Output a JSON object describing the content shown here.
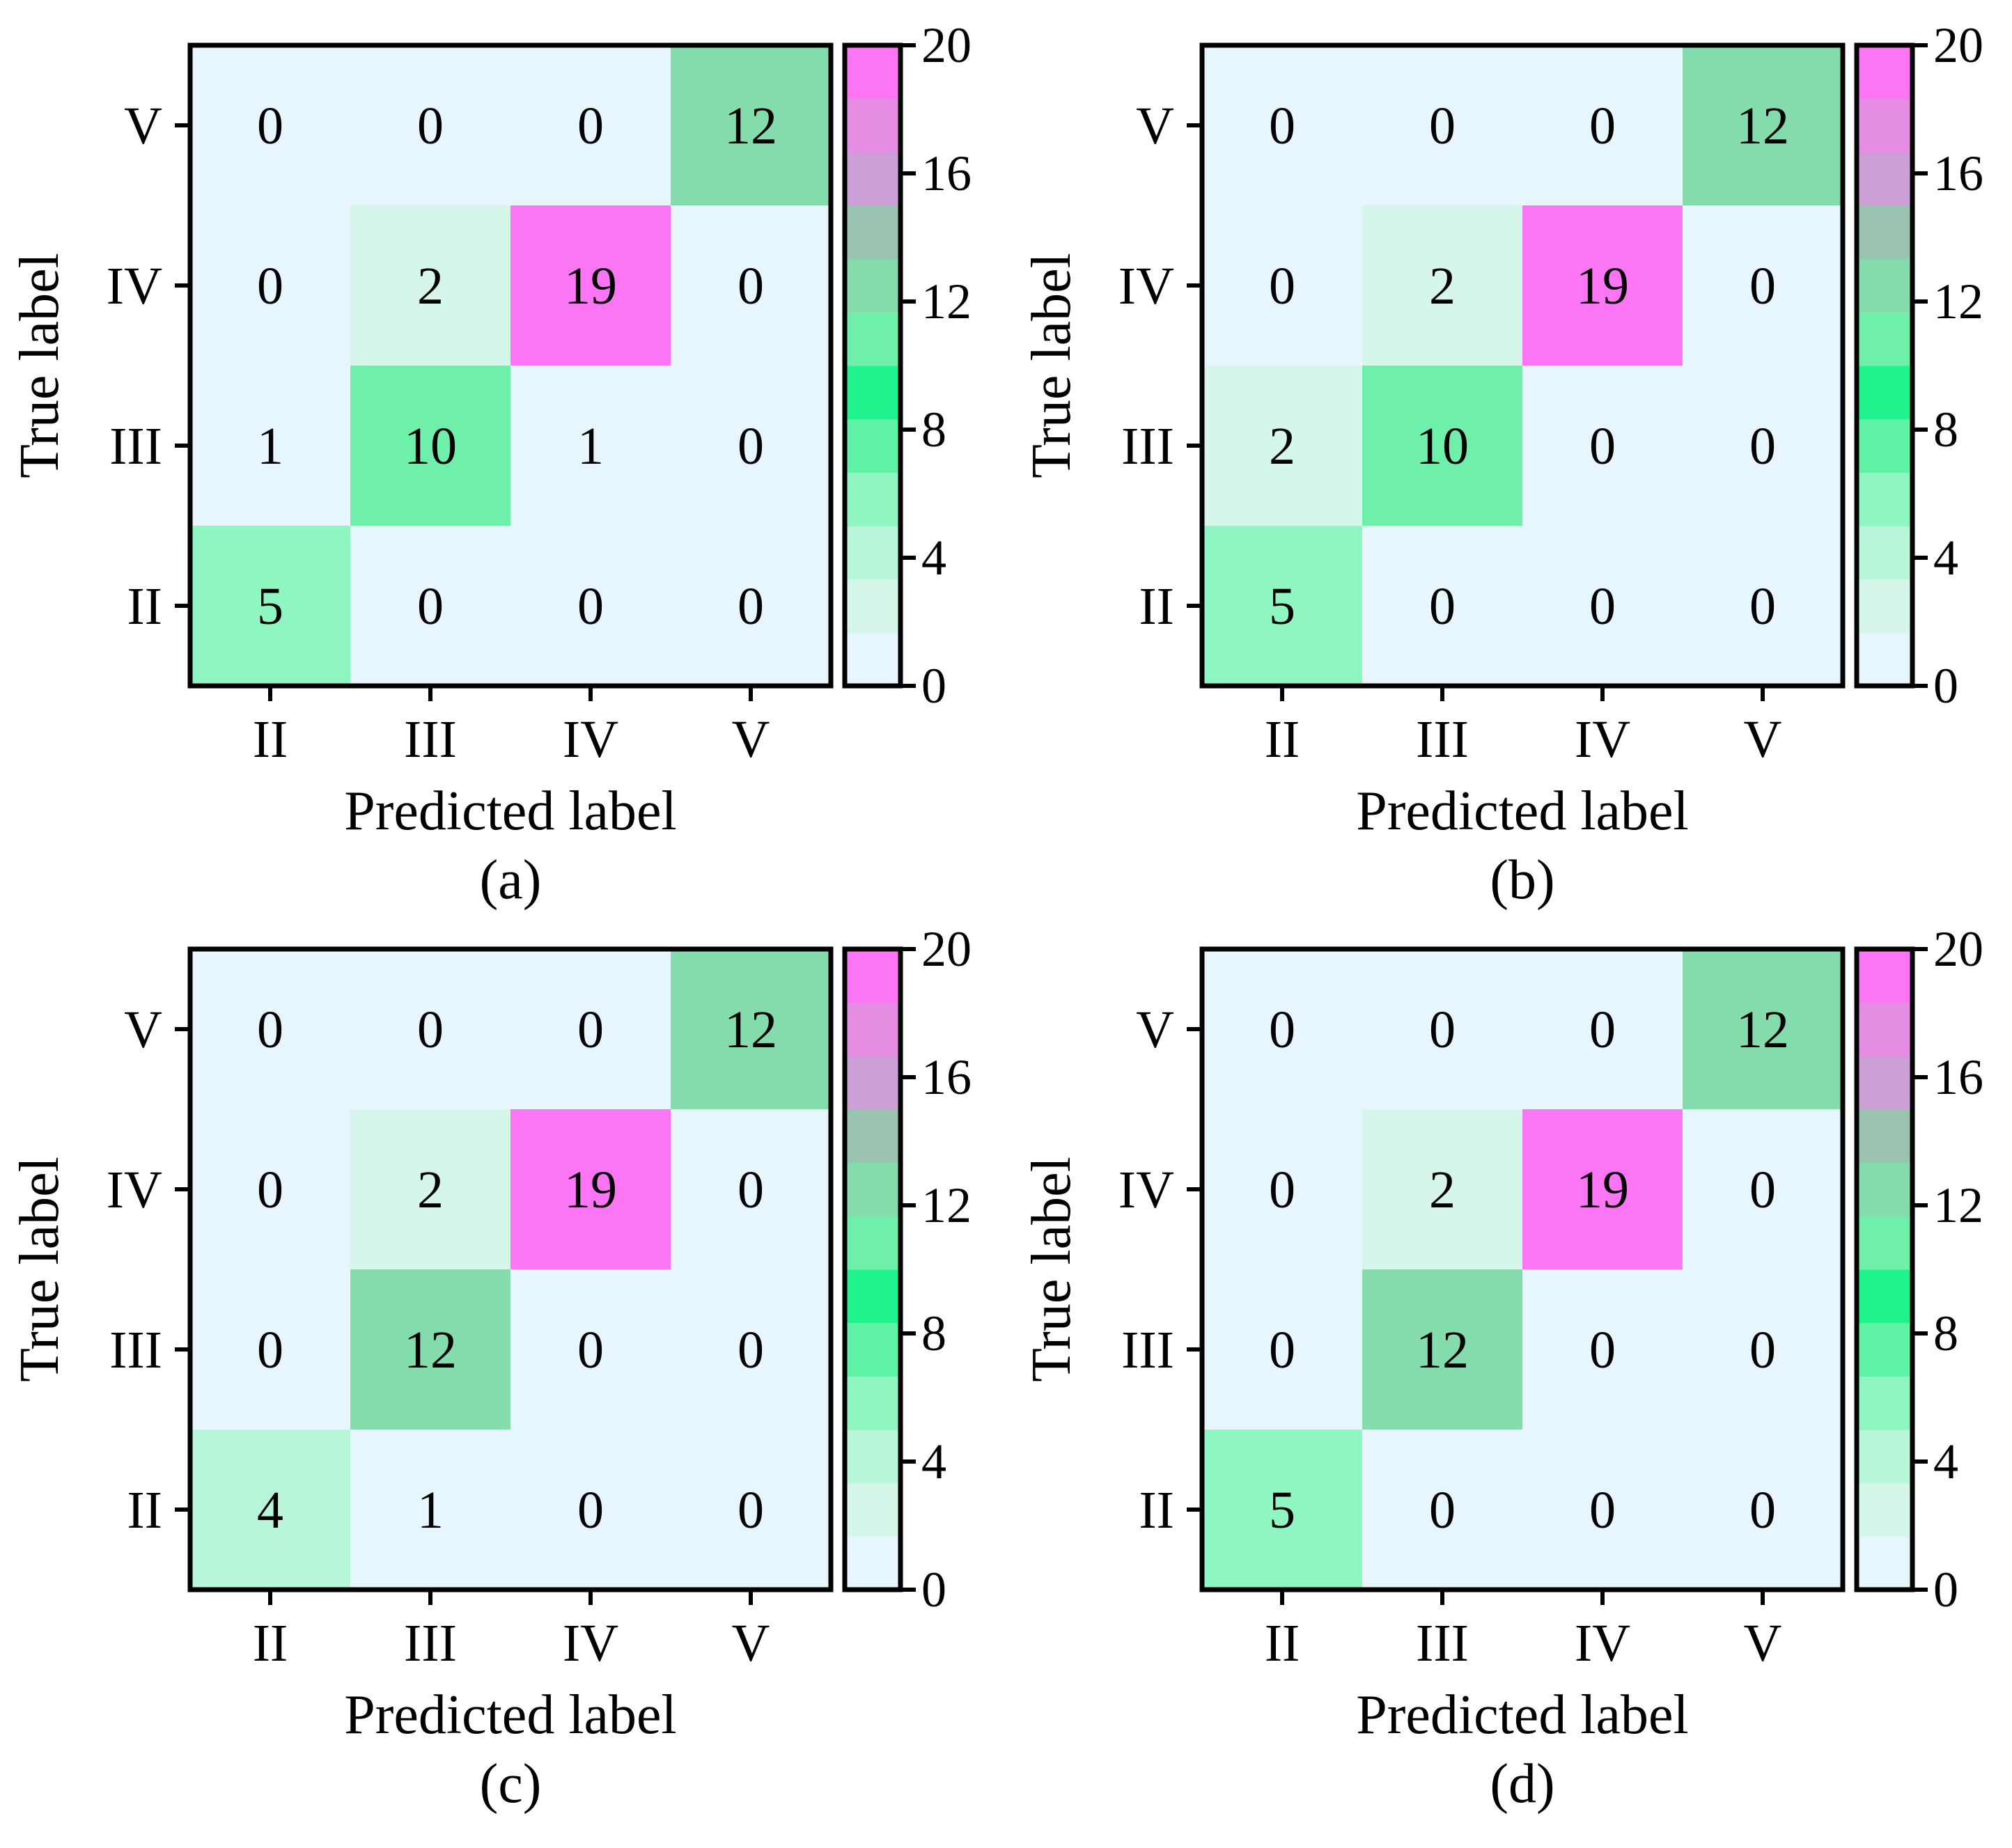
{
  "chart_data": [
    {
      "type": "heatmap",
      "caption": "(a)",
      "xlabel": "Predicted label",
      "ylabel": "True label",
      "x_categories": [
        "II",
        "III",
        "IV",
        "V"
      ],
      "y_categories_top_to_bottom": [
        "V",
        "IV",
        "III",
        "II"
      ],
      "matrix": [
        [
          0,
          0,
          0,
          12
        ],
        [
          0,
          2,
          19,
          0
        ],
        [
          1,
          10,
          1,
          0
        ],
        [
          5,
          0,
          0,
          0
        ]
      ],
      "colorbar": {
        "min": 0,
        "max": 20,
        "ticks": [
          "0",
          "4",
          "8",
          "12",
          "16",
          "20"
        ]
      }
    },
    {
      "type": "heatmap",
      "caption": "(b)",
      "xlabel": "Predicted label",
      "ylabel": "True label",
      "x_categories": [
        "II",
        "III",
        "IV",
        "V"
      ],
      "y_categories_top_to_bottom": [
        "V",
        "IV",
        "III",
        "II"
      ],
      "matrix": [
        [
          0,
          0,
          0,
          12
        ],
        [
          0,
          2,
          19,
          0
        ],
        [
          2,
          10,
          0,
          0
        ],
        [
          5,
          0,
          0,
          0
        ]
      ],
      "colorbar": {
        "min": 0,
        "max": 20,
        "ticks": [
          "0",
          "4",
          "8",
          "12",
          "16",
          "20"
        ]
      }
    },
    {
      "type": "heatmap",
      "caption": "(c)",
      "xlabel": "Predicted label",
      "ylabel": "True label",
      "x_categories": [
        "II",
        "III",
        "IV",
        "V"
      ],
      "y_categories_top_to_bottom": [
        "V",
        "IV",
        "III",
        "II"
      ],
      "matrix": [
        [
          0,
          0,
          0,
          12
        ],
        [
          0,
          2,
          19,
          0
        ],
        [
          0,
          12,
          0,
          0
        ],
        [
          4,
          1,
          0,
          0
        ]
      ],
      "colorbar": {
        "min": 0,
        "max": 20,
        "ticks": [
          "0",
          "4",
          "8",
          "12",
          "16",
          "20"
        ]
      }
    },
    {
      "type": "heatmap",
      "caption": "(d)",
      "xlabel": "Predicted label",
      "ylabel": "True label",
      "x_categories": [
        "II",
        "III",
        "IV",
        "V"
      ],
      "y_categories_top_to_bottom": [
        "V",
        "IV",
        "III",
        "II"
      ],
      "matrix": [
        [
          0,
          0,
          0,
          12
        ],
        [
          0,
          2,
          19,
          0
        ],
        [
          0,
          12,
          0,
          0
        ],
        [
          5,
          0,
          0,
          0
        ]
      ],
      "colorbar": {
        "min": 0,
        "max": 20,
        "ticks": [
          "0",
          "4",
          "8",
          "12",
          "16",
          "20"
        ]
      }
    }
  ],
  "colormap": [
    "#e6f6fc",
    "#d6f6ea",
    "#b7f6d8",
    "#8ff5c1",
    "#5ff3a8",
    "#20f28e",
    "#6ff0aa",
    "#84dcac",
    "#9ac4b0",
    "#cc9fd6",
    "#e48de2",
    "#fc75f4"
  ]
}
